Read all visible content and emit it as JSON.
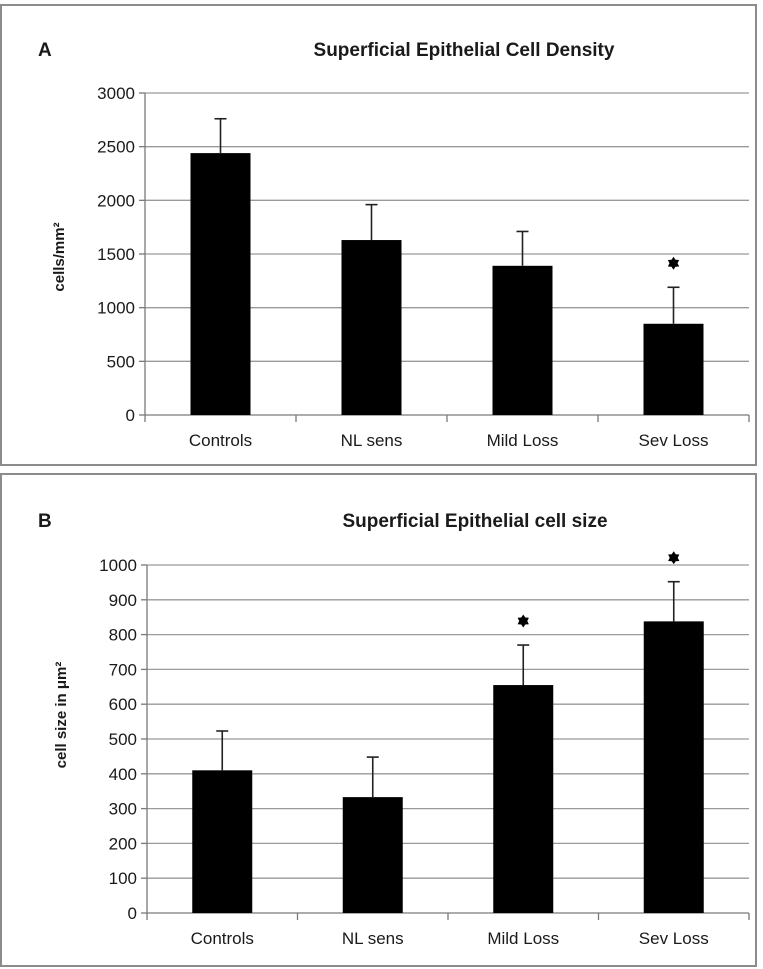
{
  "chart_data": [
    {
      "panel_label": "A",
      "type": "bar",
      "title": "Superficial Epithelial Cell Density",
      "xlabel": "",
      "ylabel": "cells/mm²",
      "categories": [
        "Controls",
        "NL sens",
        "Mild Loss",
        "Sev Loss"
      ],
      "values": [
        2440,
        1630,
        1390,
        850
      ],
      "error_upper": [
        2760,
        1960,
        1710,
        1190
      ],
      "significant": [
        false,
        false,
        false,
        true
      ],
      "ylim": [
        0,
        3000
      ],
      "yticks": [
        0,
        500,
        1000,
        1500,
        2000,
        2500,
        3000
      ],
      "grid": true,
      "legend": "none"
    },
    {
      "panel_label": "B",
      "type": "bar",
      "title": "Superficial Epithelial cell size",
      "xlabel": "",
      "ylabel": "cell size in μm²",
      "categories": [
        "Controls",
        "NL sens",
        "Mild Loss",
        "Sev Loss"
      ],
      "values": [
        410,
        333,
        655,
        838
      ],
      "error_upper": [
        523,
        448,
        770,
        952
      ],
      "significant": [
        false,
        false,
        true,
        true
      ],
      "ylim": [
        0,
        1000
      ],
      "yticks": [
        0,
        100,
        200,
        300,
        400,
        500,
        600,
        700,
        800,
        900,
        1000
      ],
      "grid": true,
      "legend": "none"
    }
  ]
}
